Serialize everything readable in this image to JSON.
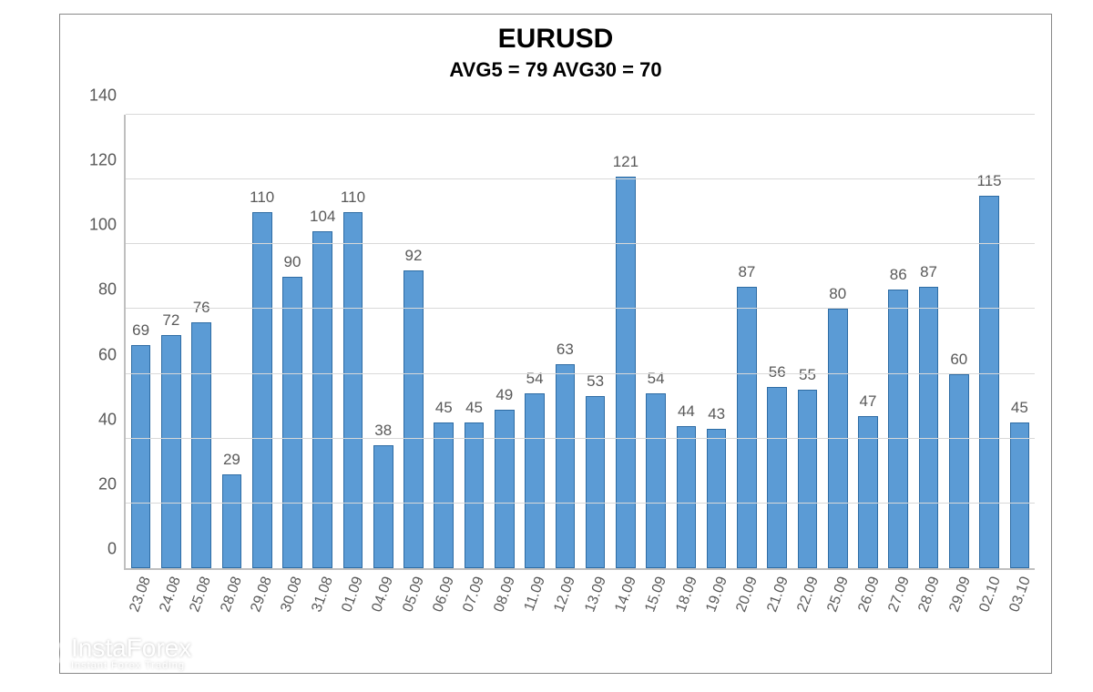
{
  "chart": {
    "type": "bar",
    "title": "EURUSD",
    "subtitle": "AVG5 = 79 AVG30 = 70",
    "title_fontsize": 30,
    "subtitle_fontsize": 22,
    "title_color": "#000000",
    "ylim_min": 0,
    "ylim_max": 140,
    "ytick_step": 20,
    "yticks": [
      0,
      20,
      40,
      60,
      80,
      100,
      120,
      140
    ],
    "categories": [
      "23.08",
      "24.08",
      "25.08",
      "28.08",
      "29.08",
      "30.08",
      "31.08",
      "01.09",
      "04.09",
      "05.09",
      "06.09",
      "07.09",
      "08.09",
      "11.09",
      "12.09",
      "13.09",
      "14.09",
      "15.09",
      "18.09",
      "19.09",
      "20.09",
      "21.09",
      "22.09",
      "25.09",
      "26.09",
      "27.09",
      "28.09",
      "29.09",
      "02.10",
      "03.10"
    ],
    "values": [
      69,
      72,
      76,
      29,
      110,
      90,
      104,
      110,
      38,
      92,
      45,
      45,
      49,
      54,
      63,
      53,
      121,
      54,
      44,
      43,
      87,
      56,
      55,
      80,
      47,
      86,
      87,
      60,
      115,
      45
    ],
    "bar_fill_color": "#5b9bd5",
    "bar_border_color": "#2e6ca4",
    "bar_border_width": 1,
    "bar_width_ratio": 0.65,
    "value_label_fontsize": 17,
    "value_label_color": "#595959",
    "axis_label_fontsize": 18,
    "axis_label_color": "#595959",
    "xlabel_rotation_deg": -70,
    "grid_color": "#d9d9d9",
    "axis_line_color": "#bfbfbf",
    "background_color": "#ffffff",
    "frame_border_color": "#888888"
  },
  "watermark": {
    "brand": "InstaForex",
    "tagline": "Instant Forex Trading",
    "color": "#ffffff",
    "opacity": 0.55
  }
}
